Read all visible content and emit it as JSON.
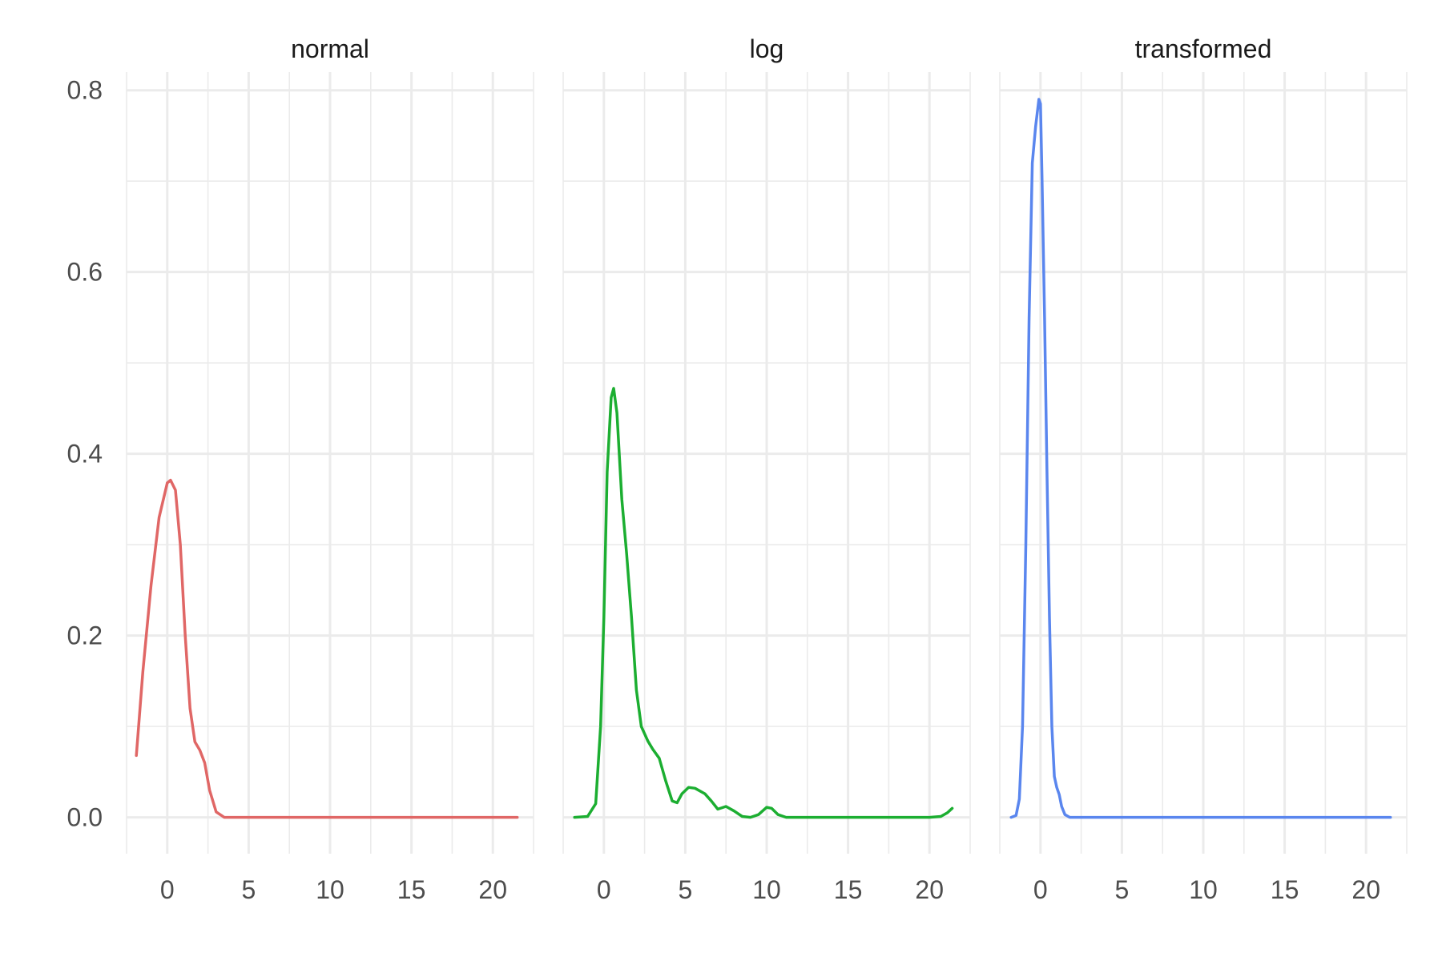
{
  "chart_data": {
    "type": "line",
    "layout": "facets-3-columns",
    "title": "",
    "xlabel": "",
    "ylabel": "",
    "xlim": [
      -2.5,
      22.5
    ],
    "ylim": [
      -0.04,
      0.82
    ],
    "x_ticks": [
      0,
      5,
      10,
      15,
      20
    ],
    "y_ticks": [
      0.0,
      0.2,
      0.4,
      0.6,
      0.8
    ],
    "x_tick_labels": [
      "0",
      "5",
      "10",
      "15",
      "20"
    ],
    "y_tick_labels": [
      "0.0",
      "0.2",
      "0.4",
      "0.6",
      "0.8"
    ],
    "grid": true,
    "legend": "none",
    "facets": [
      {
        "label": "normal",
        "color": "#E06766",
        "points": [
          [
            -1.9,
            0.068
          ],
          [
            -1.5,
            0.16
          ],
          [
            -1.0,
            0.255
          ],
          [
            -0.5,
            0.33
          ],
          [
            0.0,
            0.368
          ],
          [
            0.2,
            0.371
          ],
          [
            0.5,
            0.36
          ],
          [
            0.8,
            0.3
          ],
          [
            1.1,
            0.2
          ],
          [
            1.4,
            0.12
          ],
          [
            1.7,
            0.083
          ],
          [
            2.0,
            0.074
          ],
          [
            2.3,
            0.06
          ],
          [
            2.6,
            0.03
          ],
          [
            3.0,
            0.006
          ],
          [
            3.5,
            0.0
          ],
          [
            5.0,
            0.0
          ],
          [
            10.0,
            0.0
          ],
          [
            15.0,
            0.0
          ],
          [
            20.0,
            0.0
          ],
          [
            21.5,
            0.0
          ]
        ]
      },
      {
        "label": "log",
        "color": "#1CAE31",
        "points": [
          [
            -1.8,
            0.0
          ],
          [
            -1.0,
            0.001
          ],
          [
            -0.5,
            0.015
          ],
          [
            -0.2,
            0.1
          ],
          [
            0.0,
            0.22
          ],
          [
            0.2,
            0.38
          ],
          [
            0.45,
            0.462
          ],
          [
            0.6,
            0.472
          ],
          [
            0.8,
            0.445
          ],
          [
            1.1,
            0.35
          ],
          [
            1.4,
            0.29
          ],
          [
            1.7,
            0.22
          ],
          [
            2.0,
            0.14
          ],
          [
            2.3,
            0.1
          ],
          [
            2.7,
            0.084
          ],
          [
            3.0,
            0.075
          ],
          [
            3.4,
            0.065
          ],
          [
            3.8,
            0.04
          ],
          [
            4.2,
            0.018
          ],
          [
            4.5,
            0.016
          ],
          [
            4.8,
            0.026
          ],
          [
            5.2,
            0.033
          ],
          [
            5.6,
            0.032
          ],
          [
            6.2,
            0.026
          ],
          [
            6.6,
            0.018
          ],
          [
            7.0,
            0.009
          ],
          [
            7.5,
            0.012
          ],
          [
            8.0,
            0.007
          ],
          [
            8.5,
            0.001
          ],
          [
            9.0,
            0.0
          ],
          [
            9.5,
            0.003
          ],
          [
            10.0,
            0.011
          ],
          [
            10.3,
            0.01
          ],
          [
            10.7,
            0.003
          ],
          [
            11.2,
            0.0
          ],
          [
            15.0,
            0.0
          ],
          [
            20.0,
            0.0
          ],
          [
            20.7,
            0.001
          ],
          [
            21.1,
            0.005
          ],
          [
            21.4,
            0.01
          ]
        ]
      },
      {
        "label": "transformed",
        "color": "#5A86EE",
        "points": [
          [
            -1.8,
            0.0
          ],
          [
            -1.5,
            0.002
          ],
          [
            -1.3,
            0.02
          ],
          [
            -1.1,
            0.1
          ],
          [
            -0.9,
            0.3
          ],
          [
            -0.7,
            0.55
          ],
          [
            -0.5,
            0.72
          ],
          [
            -0.3,
            0.76
          ],
          [
            -0.1,
            0.79
          ],
          [
            0.0,
            0.785
          ],
          [
            0.1,
            0.7
          ],
          [
            0.25,
            0.55
          ],
          [
            0.4,
            0.38
          ],
          [
            0.55,
            0.22
          ],
          [
            0.7,
            0.1
          ],
          [
            0.85,
            0.045
          ],
          [
            1.0,
            0.033
          ],
          [
            1.15,
            0.025
          ],
          [
            1.3,
            0.012
          ],
          [
            1.5,
            0.003
          ],
          [
            1.8,
            0.0
          ],
          [
            5.0,
            0.0
          ],
          [
            10.0,
            0.0
          ],
          [
            15.0,
            0.0
          ],
          [
            20.0,
            0.0
          ],
          [
            21.5,
            0.0
          ]
        ]
      }
    ]
  }
}
